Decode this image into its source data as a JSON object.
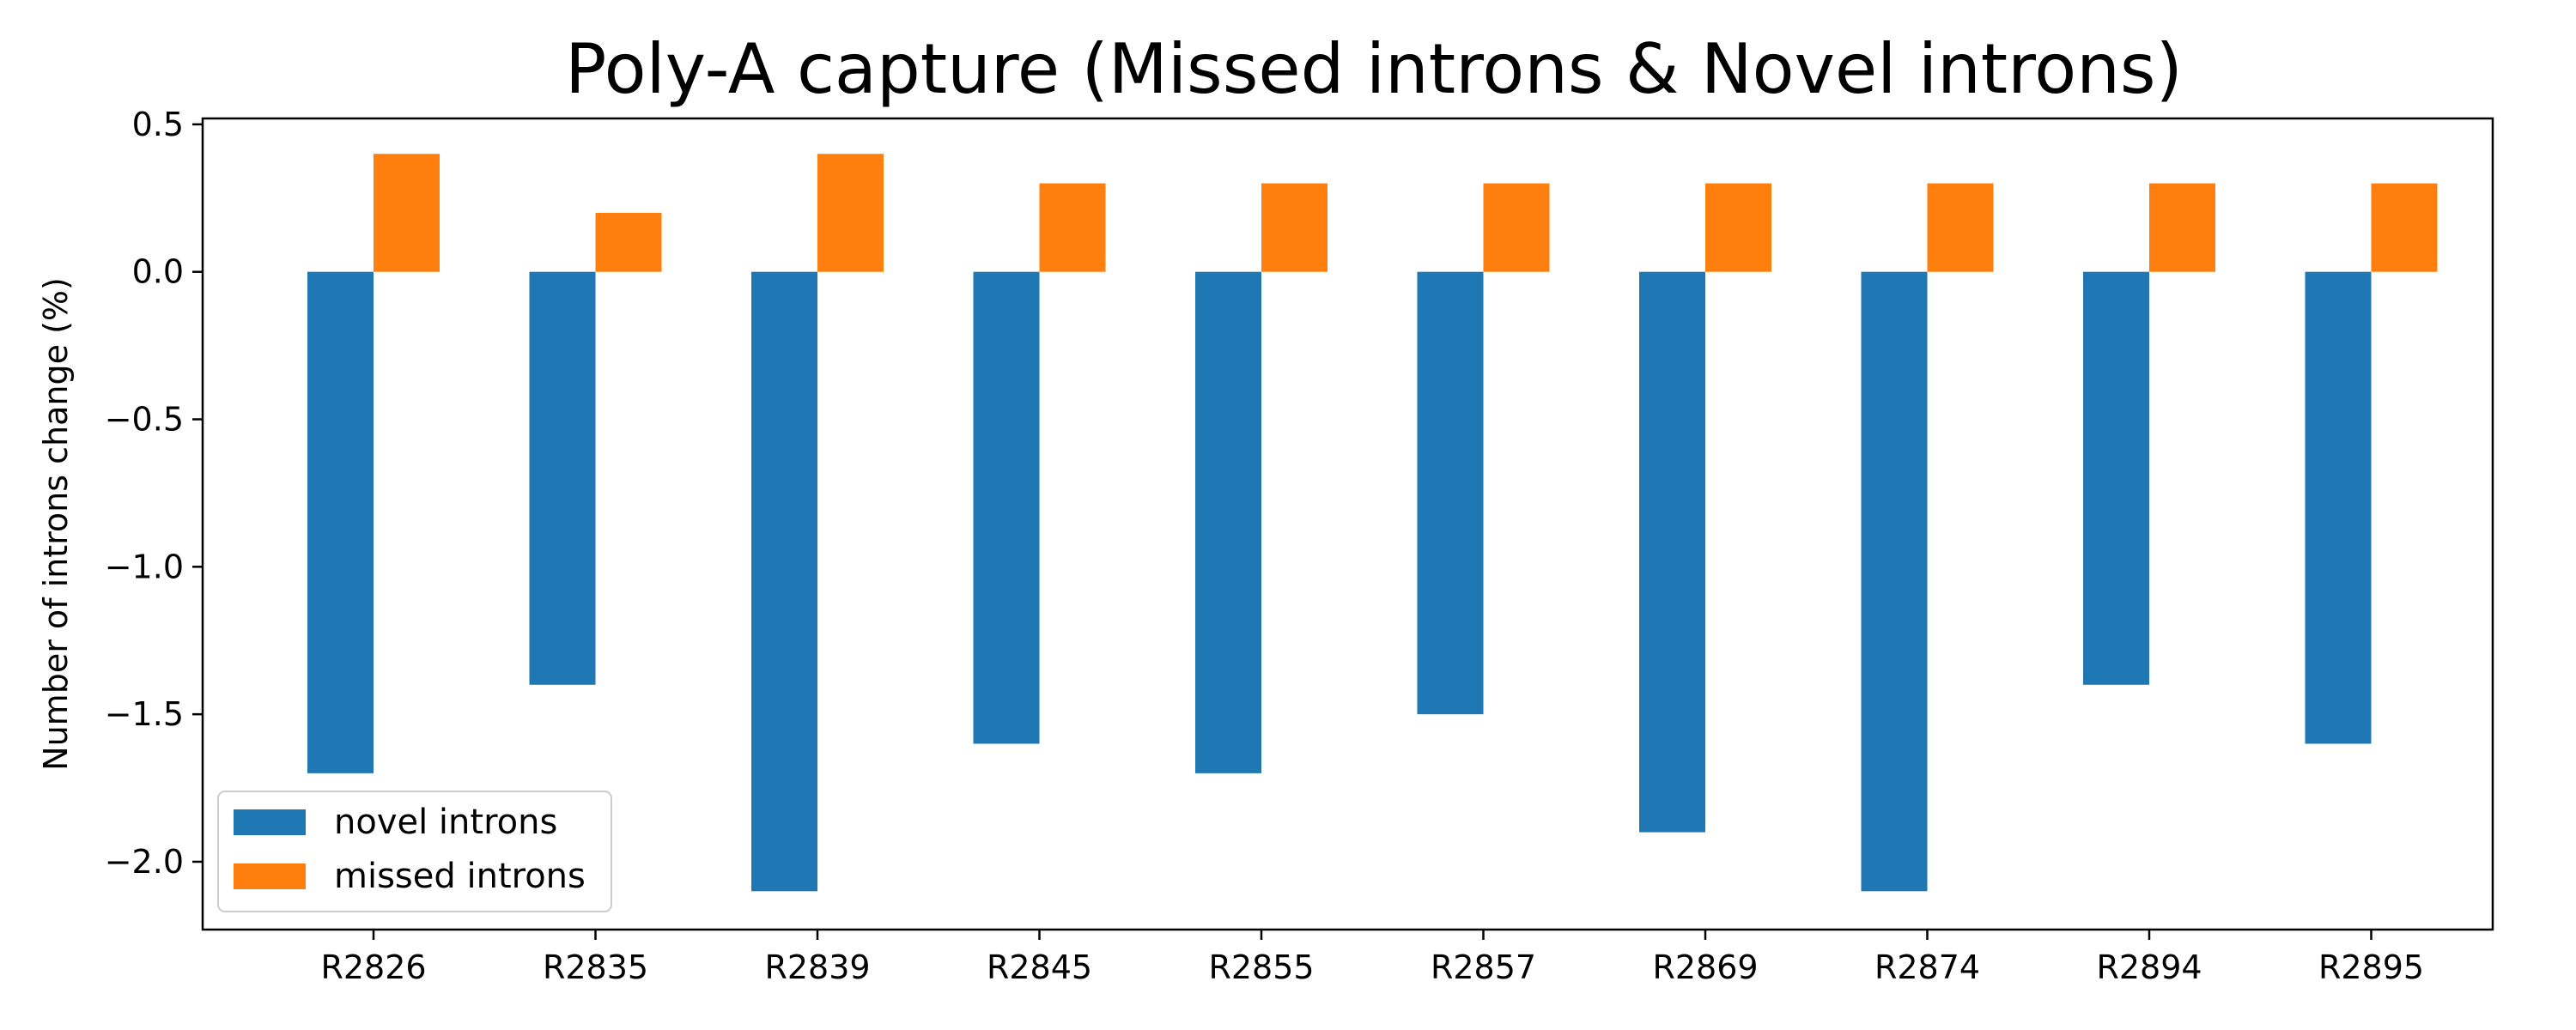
{
  "chart_data": {
    "type": "bar",
    "title": "Poly-A capture (Missed introns & Novel introns)",
    "xlabel": "",
    "ylabel": "Number of introns change (%)",
    "categories": [
      "R2826",
      "R2835",
      "R2839",
      "R2845",
      "R2855",
      "R2857",
      "R2869",
      "R2874",
      "R2894",
      "R2895"
    ],
    "series": [
      {
        "name": "novel introns",
        "color": "#1f77b4",
        "values": [
          -1.7,
          -1.4,
          -2.1,
          -1.6,
          -1.7,
          -1.5,
          -1.9,
          -2.1,
          -1.4,
          -1.6
        ]
      },
      {
        "name": "missed introns",
        "color": "#ff7f0e",
        "values": [
          0.4,
          0.2,
          0.4,
          0.3,
          0.3,
          0.3,
          0.3,
          0.3,
          0.3,
          0.3
        ]
      }
    ],
    "yticks": [
      0.5,
      0.0,
      -0.5,
      -1.0,
      -1.5,
      -2.0
    ],
    "ytick_labels": [
      "0.5",
      "0.0",
      "−0.5",
      "−1.0",
      "−1.5",
      "−2.0"
    ],
    "ylim": [
      -2.23,
      0.52
    ],
    "grid": false,
    "legend_position": "lower-left"
  }
}
